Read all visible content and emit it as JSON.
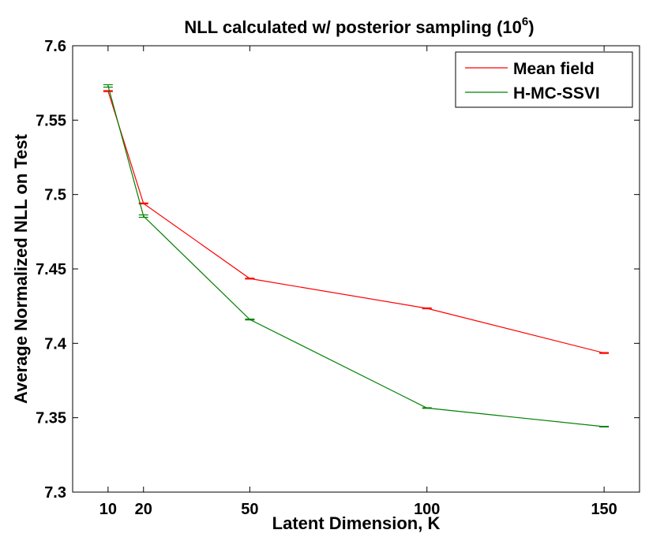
{
  "chart_data": {
    "type": "line",
    "title": "NLL calculated w/ posterior sampling (10",
    "title_superscript": "6",
    "title_suffix": ")",
    "xlabel": "Latent Dimension, K",
    "ylabel": "Average Normalized NLL on Test",
    "x": [
      10,
      20,
      50,
      100,
      150
    ],
    "xlim": [
      0,
      160
    ],
    "ylim": [
      7.3,
      7.6
    ],
    "xticks": [
      10,
      20,
      50,
      100,
      150
    ],
    "yticks": [
      7.3,
      7.35,
      7.4,
      7.45,
      7.5,
      7.55,
      7.6
    ],
    "ytick_labels": [
      "7.3",
      "7.35",
      "7.4",
      "7.45",
      "7.5",
      "7.55",
      "7.6"
    ],
    "legend_position": "top-right",
    "series": [
      {
        "name": "Mean field",
        "color": "#ff0000",
        "values": [
          7.5695,
          7.494,
          7.4435,
          7.4235,
          7.3935
        ],
        "error": [
          0.0003,
          0.0003,
          0.0003,
          0.0003,
          0.0003
        ]
      },
      {
        "name": "H-MC-SSVI",
        "color": "#008000",
        "values": [
          7.573,
          7.4855,
          7.416,
          7.3565,
          7.344
        ],
        "error": [
          0.0008,
          0.0008,
          0.0003,
          0.0002,
          0.0002
        ]
      }
    ]
  }
}
